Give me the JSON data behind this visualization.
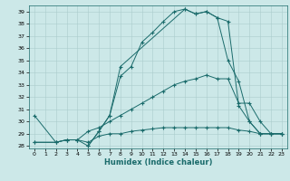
{
  "xlabel": "Humidex (Indice chaleur)",
  "xlim": [
    -0.5,
    23.5
  ],
  "ylim": [
    27.8,
    39.5
  ],
  "xticks": [
    0,
    1,
    2,
    3,
    4,
    5,
    6,
    7,
    8,
    9,
    10,
    11,
    12,
    13,
    14,
    15,
    16,
    17,
    18,
    19,
    20,
    21,
    22,
    23
  ],
  "yticks": [
    28,
    29,
    30,
    31,
    32,
    33,
    34,
    35,
    36,
    37,
    38,
    39
  ],
  "bg_color": "#cce8e8",
  "line_color": "#1a6b6b",
  "grid_color": "#aacccc",
  "line1_x": [
    0,
    2,
    3,
    4,
    5,
    6,
    7,
    8,
    9,
    10,
    11,
    12,
    13,
    14,
    15,
    16,
    17,
    18,
    19,
    20,
    21,
    22,
    23
  ],
  "line1_y": [
    30.5,
    28.3,
    28.5,
    28.5,
    28.0,
    29.2,
    30.5,
    33.7,
    34.5,
    36.5,
    37.3,
    38.2,
    39.0,
    39.2,
    38.8,
    39.0,
    38.5,
    38.2,
    31.3,
    30.0,
    29.0,
    29.0,
    29.0
  ],
  "line2_x": [
    0,
    2,
    3,
    4,
    5,
    6,
    7,
    8,
    9,
    10,
    11,
    12,
    13,
    14,
    15,
    16,
    17,
    18,
    19,
    20,
    21,
    22,
    23
  ],
  "line2_y": [
    28.3,
    28.3,
    28.5,
    28.5,
    29.2,
    29.5,
    30.0,
    30.5,
    31.0,
    31.5,
    32.0,
    32.5,
    33.0,
    33.3,
    33.5,
    33.8,
    33.5,
    33.5,
    31.5,
    31.5,
    30.0,
    29.0,
    29.0
  ],
  "line3_x": [
    0,
    2,
    3,
    4,
    5,
    6,
    7,
    8,
    9,
    10,
    11,
    12,
    13,
    14,
    15,
    16,
    17,
    18,
    19,
    20,
    21,
    22,
    23
  ],
  "line3_y": [
    28.3,
    28.3,
    28.5,
    28.5,
    28.3,
    28.8,
    29.0,
    29.0,
    29.2,
    29.3,
    29.4,
    29.5,
    29.5,
    29.5,
    29.5,
    29.5,
    29.5,
    29.5,
    29.3,
    29.2,
    29.0,
    29.0,
    29.0
  ],
  "line4_x": [
    5,
    6,
    7,
    8,
    14,
    15,
    16,
    17,
    18,
    19,
    20,
    21,
    22,
    23
  ],
  "line4_y": [
    28.0,
    29.2,
    30.5,
    34.5,
    39.2,
    38.8,
    39.0,
    38.5,
    35.0,
    33.3,
    30.0,
    29.0,
    29.0,
    29.0
  ]
}
